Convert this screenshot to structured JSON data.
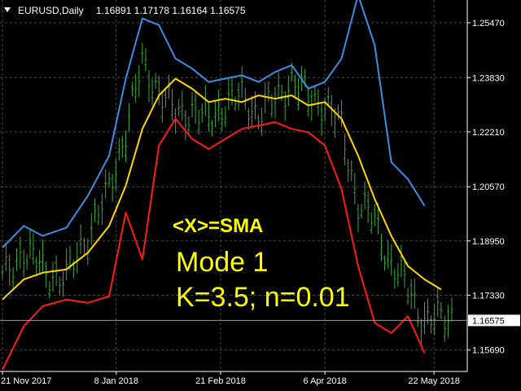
{
  "header": {
    "symbol": "EURUSD,Daily",
    "ohlc": "1.16891 1.17178 1.16164 1.16575"
  },
  "annotation": {
    "line1": "<X>=SMA",
    "line2": "Mode 1",
    "line3": "K=3.5; n=0.01"
  },
  "colors": {
    "background": "#000000",
    "grid": "#4a4a4a",
    "bars": "#3fa83f",
    "upper_band": "#3a8ee6",
    "middle_line": "#ffd700",
    "lower_band": "#ff1a1a",
    "annotation": "#ffff00",
    "current_price_line": "#9a9a9a"
  },
  "chart_data": {
    "type": "line",
    "title": "",
    "xlabel": "",
    "ylabel": "",
    "grid": "on (dashed)",
    "ylim": [
      1.1505,
      1.2615
    ],
    "y_ticks": [
      "1.25470",
      "1.23830",
      "1.22210",
      "1.20570",
      "1.18950",
      "1.17330",
      "1.15690"
    ],
    "x_ticks": [
      "21 Nov 2017",
      "8 Jan 2018",
      "21 Feb 2018",
      "6 Apr 2018",
      "22 May 2018"
    ],
    "current_price": "1.16575",
    "x": [
      "2017-11-21",
      "2017-11-30",
      "2017-12-08",
      "2017-12-18",
      "2017-12-27",
      "2018-01-05",
      "2018-01-12",
      "2018-01-19",
      "2018-01-26",
      "2018-02-02",
      "2018-02-09",
      "2018-02-16",
      "2018-02-23",
      "2018-03-02",
      "2018-03-09",
      "2018-03-16",
      "2018-03-23",
      "2018-03-30",
      "2018-04-06",
      "2018-04-13",
      "2018-04-20",
      "2018-04-27",
      "2018-05-04",
      "2018-05-11",
      "2018-05-18",
      "2018-05-25",
      "2018-05-31"
    ],
    "series": [
      {
        "role": "upper_band",
        "values": [
          1.1875,
          1.194,
          1.191,
          1.1935,
          1.203,
          1.215,
          1.238,
          1.256,
          1.254,
          1.244,
          1.241,
          1.237,
          1.238,
          1.239,
          1.237,
          1.24,
          1.242,
          1.235,
          1.237,
          1.244,
          1.263,
          1.248,
          1.213,
          1.208,
          1.2,
          null,
          null
        ]
      },
      {
        "role": "middle_line",
        "values": [
          1.172,
          1.178,
          1.18,
          1.181,
          1.186,
          1.194,
          1.206,
          1.223,
          1.233,
          1.238,
          1.235,
          1.231,
          1.232,
          1.231,
          1.233,
          1.232,
          1.233,
          1.23,
          1.231,
          1.226,
          1.215,
          1.202,
          1.191,
          1.182,
          1.178,
          1.175,
          null
        ]
      },
      {
        "role": "lower_band",
        "values": [
          1.151,
          1.164,
          1.17,
          1.172,
          1.171,
          1.173,
          1.198,
          1.184,
          1.218,
          1.226,
          1.22,
          1.217,
          1.22,
          1.223,
          1.224,
          1.225,
          1.223,
          1.222,
          1.218,
          1.205,
          1.182,
          1.165,
          1.162,
          1.167,
          1.156,
          null,
          null
        ]
      },
      {
        "role": "bars",
        "values": [
          1.178,
          1.187,
          1.181,
          1.178,
          1.192,
          1.204,
          1.223,
          1.242,
          1.235,
          1.227,
          1.229,
          1.225,
          1.231,
          1.232,
          1.228,
          1.231,
          1.238,
          1.232,
          1.231,
          1.223,
          1.201,
          1.195,
          1.183,
          1.175,
          1.166,
          1.166,
          1.168
        ]
      }
    ]
  }
}
